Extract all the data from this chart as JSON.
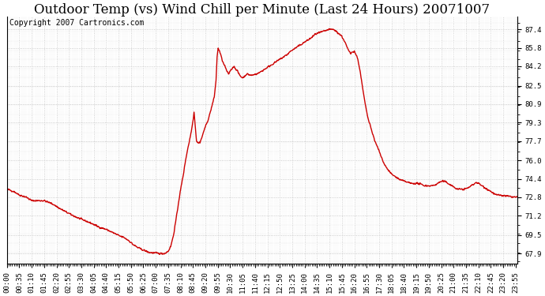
{
  "title": "Outdoor Temp (vs) Wind Chill per Minute (Last 24 Hours) 20071007",
  "copyright_text": "Copyright 2007 Cartronics.com",
  "line_color": "#cc0000",
  "bg_color": "#ffffff",
  "plot_bg_color": "#ffffff",
  "grid_color": "#bbbbbb",
  "grid_style": ":",
  "yticks": [
    67.9,
    69.5,
    71.2,
    72.8,
    74.4,
    76.0,
    77.7,
    79.3,
    80.9,
    82.5,
    84.2,
    85.8,
    87.4
  ],
  "ymin": 67.0,
  "ymax": 88.5,
  "title_fontsize": 12,
  "copyright_fontsize": 7,
  "tick_label_fontsize": 6.5,
  "line_width": 1.0,
  "num_points": 1440,
  "xtick_step_minutes": 35
}
